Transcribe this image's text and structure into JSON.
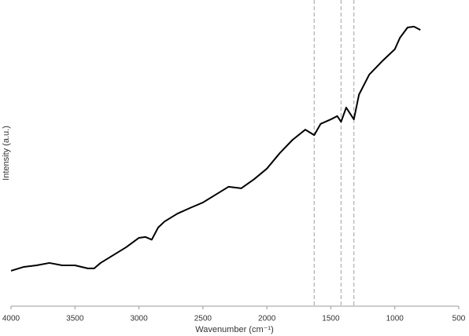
{
  "chart_data": {
    "type": "line",
    "xlabel": "Wavenumber (cm⁻¹)",
    "ylabel": "Intensity (a.u.)",
    "x": [
      4000,
      3900,
      3800,
      3700,
      3600,
      3500,
      3400,
      3350,
      3300,
      3200,
      3100,
      3000,
      2950,
      2900,
      2850,
      2800,
      2700,
      2600,
      2500,
      2400,
      2300,
      2200,
      2100,
      2000,
      1900,
      1800,
      1700,
      1630,
      1580,
      1500,
      1450,
      1420,
      1380,
      1320,
      1280,
      1200,
      1100,
      1000,
      960,
      900,
      850,
      800
    ],
    "series": [
      {
        "color": "#000000",
        "values": [
          11.7,
          13,
          13.5,
          14.3,
          13.5,
          13.5,
          12.5,
          12.5,
          14.3,
          16.9,
          19.5,
          22.6,
          22.9,
          22,
          26,
          28,
          30.6,
          32.5,
          34.3,
          36.9,
          39.5,
          39,
          42,
          45.5,
          50.6,
          55,
          58.4,
          56.6,
          60.3,
          61.8,
          62.9,
          61,
          65.7,
          61.8,
          70,
          76.6,
          81,
          85,
          88.8,
          92.2,
          92.5,
          91.4
        ]
      }
    ],
    "reference_lines": [
      1630,
      1420,
      1320
    ],
    "reference_color": "#b0b0b0",
    "xlim": [
      4000,
      500
    ],
    "xticks": [
      4000,
      3500,
      3000,
      2500,
      2000,
      1500,
      1000,
      500
    ],
    "ylim": [
      0,
      100
    ]
  }
}
